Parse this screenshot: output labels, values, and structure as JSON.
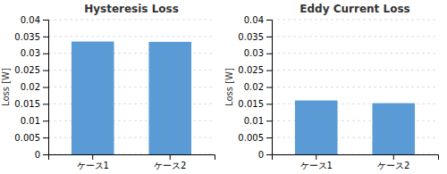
{
  "chart_data": [
    {
      "type": "bar",
      "title": "Hysteresis Loss",
      "ylabel": "Loss [W]",
      "categories": [
        "ケース1",
        "ケース2"
      ],
      "values": [
        0.0335,
        0.0334
      ],
      "color": "#5B9BD5",
      "ylim": [
        0,
        0.04
      ],
      "yticks": [
        0,
        0.005,
        0.01,
        0.015,
        0.02,
        0.025,
        0.03,
        0.035,
        0.04
      ],
      "grid": true
    },
    {
      "type": "bar",
      "title": "Eddy Current Loss",
      "ylabel": "Loss [W]",
      "categories": [
        "ケース1",
        "ケース2"
      ],
      "values": [
        0.016,
        0.0152
      ],
      "color": "#5B9BD5",
      "ylim": [
        0,
        0.04
      ],
      "yticks": [
        0,
        0.005,
        0.01,
        0.015,
        0.02,
        0.025,
        0.03,
        0.035,
        0.04
      ],
      "grid": true
    }
  ]
}
